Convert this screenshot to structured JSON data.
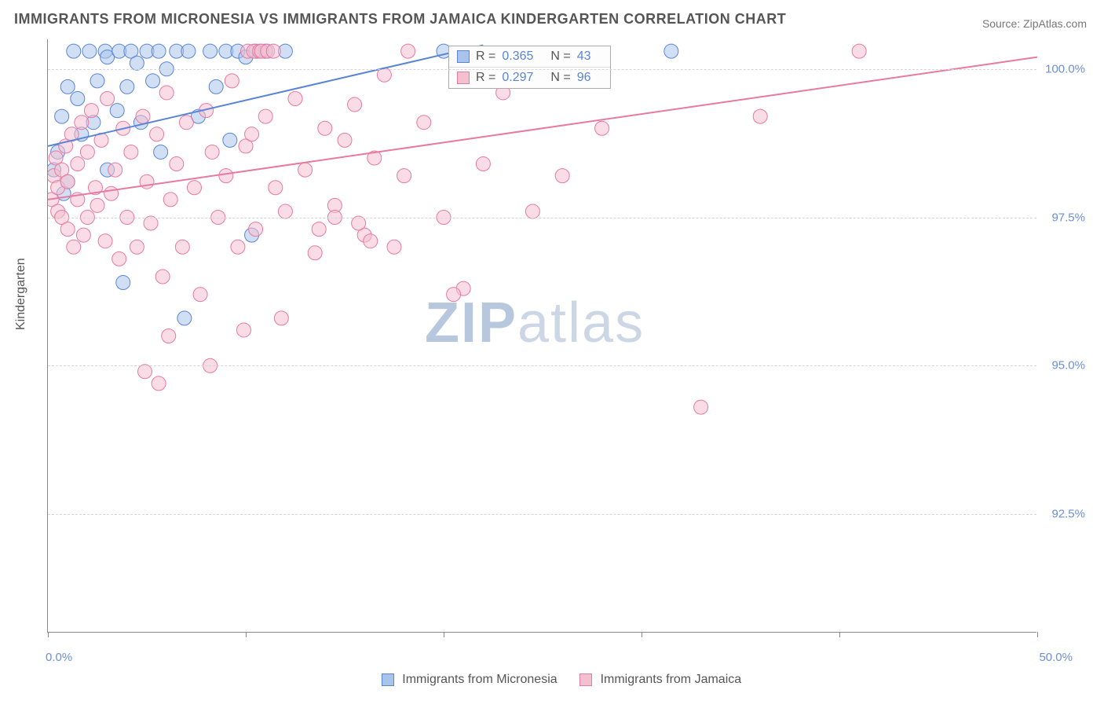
{
  "title": "IMMIGRANTS FROM MICRONESIA VS IMMIGRANTS FROM JAMAICA KINDERGARTEN CORRELATION CHART",
  "source": "Source: ZipAtlas.com",
  "y_axis_label": "Kindergarten",
  "watermark_a": "ZIP",
  "watermark_b": "atlas",
  "chart": {
    "type": "scatter",
    "xlim": [
      0,
      50
    ],
    "ylim": [
      90.5,
      100.5
    ],
    "x_ticks": [
      0,
      10,
      20,
      30,
      40,
      50
    ],
    "x_tick_labels": {
      "0": "0.0%",
      "50": "50.0%"
    },
    "y_gridlines": [
      92.5,
      95.0,
      97.5,
      100.0
    ],
    "y_tick_labels": [
      "92.5%",
      "95.0%",
      "97.5%",
      "100.0%"
    ],
    "background_color": "#ffffff",
    "grid_color": "#d5d5d5",
    "axis_color": "#888888",
    "tick_label_color": "#6a8fd8",
    "marker_radius": 9,
    "marker_opacity": 0.55,
    "line_width": 2,
    "series": [
      {
        "name": "Immigrants from Micronesia",
        "color_fill": "#a9c4ea",
        "color_stroke": "#5a85d6",
        "r_label": "R =",
        "r_value": "0.365",
        "n_label": "N =",
        "n_value": "43",
        "trend": {
          "x1": 0,
          "y1": 98.7,
          "x2": 22,
          "y2": 100.4
        },
        "points": [
          [
            0.3,
            98.3
          ],
          [
            0.5,
            98.6
          ],
          [
            0.7,
            99.2
          ],
          [
            0.8,
            97.9
          ],
          [
            1.0,
            99.7
          ],
          [
            1.0,
            98.1
          ],
          [
            1.3,
            100.3
          ],
          [
            1.5,
            99.5
          ],
          [
            1.7,
            98.9
          ],
          [
            2.1,
            100.3
          ],
          [
            2.3,
            99.1
          ],
          [
            2.5,
            99.8
          ],
          [
            2.9,
            100.3
          ],
          [
            3.0,
            98.3
          ],
          [
            3.0,
            100.2
          ],
          [
            3.5,
            99.3
          ],
          [
            3.6,
            100.3
          ],
          [
            3.8,
            96.4
          ],
          [
            4.0,
            99.7
          ],
          [
            4.2,
            100.3
          ],
          [
            4.5,
            100.1
          ],
          [
            4.7,
            99.1
          ],
          [
            5.0,
            100.3
          ],
          [
            5.3,
            99.8
          ],
          [
            5.6,
            100.3
          ],
          [
            5.7,
            98.6
          ],
          [
            6.0,
            100.0
          ],
          [
            6.5,
            100.3
          ],
          [
            6.9,
            95.8
          ],
          [
            7.1,
            100.3
          ],
          [
            7.6,
            99.2
          ],
          [
            8.2,
            100.3
          ],
          [
            8.5,
            99.7
          ],
          [
            9.0,
            100.3
          ],
          [
            9.2,
            98.8
          ],
          [
            9.6,
            100.3
          ],
          [
            10.0,
            100.2
          ],
          [
            10.3,
            97.2
          ],
          [
            10.5,
            100.3
          ],
          [
            11.0,
            100.3
          ],
          [
            12.0,
            100.3
          ],
          [
            20.0,
            100.3
          ],
          [
            31.5,
            100.3
          ]
        ]
      },
      {
        "name": "Immigrants from Jamaica",
        "color_fill": "#f4c0cf",
        "color_stroke": "#e77aa0",
        "r_label": "R =",
        "r_value": "0.297",
        "n_label": "N =",
        "n_value": "96",
        "trend": {
          "x1": 0,
          "y1": 97.8,
          "x2": 50,
          "y2": 100.2
        },
        "points": [
          [
            0.2,
            97.8
          ],
          [
            0.3,
            98.2
          ],
          [
            0.4,
            98.5
          ],
          [
            0.5,
            97.6
          ],
          [
            0.5,
            98.0
          ],
          [
            0.7,
            98.3
          ],
          [
            0.7,
            97.5
          ],
          [
            0.9,
            98.7
          ],
          [
            1.0,
            98.1
          ],
          [
            1.0,
            97.3
          ],
          [
            1.2,
            98.9
          ],
          [
            1.3,
            97.0
          ],
          [
            1.5,
            98.4
          ],
          [
            1.5,
            97.8
          ],
          [
            1.7,
            99.1
          ],
          [
            1.8,
            97.2
          ],
          [
            2.0,
            98.6
          ],
          [
            2.0,
            97.5
          ],
          [
            2.2,
            99.3
          ],
          [
            2.4,
            98.0
          ],
          [
            2.5,
            97.7
          ],
          [
            2.7,
            98.8
          ],
          [
            2.9,
            97.1
          ],
          [
            3.0,
            99.5
          ],
          [
            3.2,
            97.9
          ],
          [
            3.4,
            98.3
          ],
          [
            3.6,
            96.8
          ],
          [
            3.8,
            99.0
          ],
          [
            4.0,
            97.5
          ],
          [
            4.2,
            98.6
          ],
          [
            4.5,
            97.0
          ],
          [
            4.8,
            99.2
          ],
          [
            5.0,
            98.1
          ],
          [
            5.2,
            97.4
          ],
          [
            5.5,
            98.9
          ],
          [
            5.8,
            96.5
          ],
          [
            6.0,
            99.6
          ],
          [
            6.2,
            97.8
          ],
          [
            6.5,
            98.4
          ],
          [
            6.8,
            97.0
          ],
          [
            7.0,
            99.1
          ],
          [
            7.4,
            98.0
          ],
          [
            7.7,
            96.2
          ],
          [
            8.0,
            99.3
          ],
          [
            8.3,
            98.6
          ],
          [
            8.6,
            97.5
          ],
          [
            9.0,
            98.2
          ],
          [
            9.3,
            99.8
          ],
          [
            9.6,
            97.0
          ],
          [
            10.0,
            98.7
          ],
          [
            10.1,
            100.3
          ],
          [
            10.3,
            98.9
          ],
          [
            10.4,
            100.3
          ],
          [
            10.5,
            97.3
          ],
          [
            10.7,
            100.3
          ],
          [
            11.0,
            99.2
          ],
          [
            10.8,
            100.3
          ],
          [
            11.1,
            100.3
          ],
          [
            11.5,
            98.0
          ],
          [
            11.4,
            100.3
          ],
          [
            12.0,
            97.6
          ],
          [
            12.5,
            99.5
          ],
          [
            13.0,
            98.3
          ],
          [
            13.5,
            96.9
          ],
          [
            14.0,
            99.0
          ],
          [
            14.5,
            97.7
          ],
          [
            15.0,
            98.8
          ],
          [
            15.5,
            99.4
          ],
          [
            16.0,
            97.2
          ],
          [
            16.5,
            98.5
          ],
          [
            17.0,
            99.9
          ],
          [
            17.5,
            97.0
          ],
          [
            18.0,
            98.2
          ],
          [
            18.2,
            100.3
          ],
          [
            19.0,
            99.1
          ],
          [
            20.0,
            97.5
          ],
          [
            21.0,
            96.3
          ],
          [
            22.0,
            98.4
          ],
          [
            23.0,
            99.6
          ],
          [
            4.9,
            94.9
          ],
          [
            5.6,
            94.7
          ],
          [
            6.1,
            95.5
          ],
          [
            8.2,
            95.0
          ],
          [
            9.9,
            95.6
          ],
          [
            11.8,
            95.8
          ],
          [
            13.7,
            97.3
          ],
          [
            14.5,
            97.5
          ],
          [
            15.7,
            97.4
          ],
          [
            16.3,
            97.1
          ],
          [
            20.5,
            96.2
          ],
          [
            24.5,
            97.6
          ],
          [
            26.0,
            98.2
          ],
          [
            28.0,
            99.0
          ],
          [
            33.0,
            94.3
          ],
          [
            36.0,
            99.2
          ],
          [
            41.0,
            100.3
          ]
        ]
      }
    ]
  },
  "legend": {
    "series1": "Immigrants from Micronesia",
    "series2": "Immigrants from Jamaica"
  }
}
